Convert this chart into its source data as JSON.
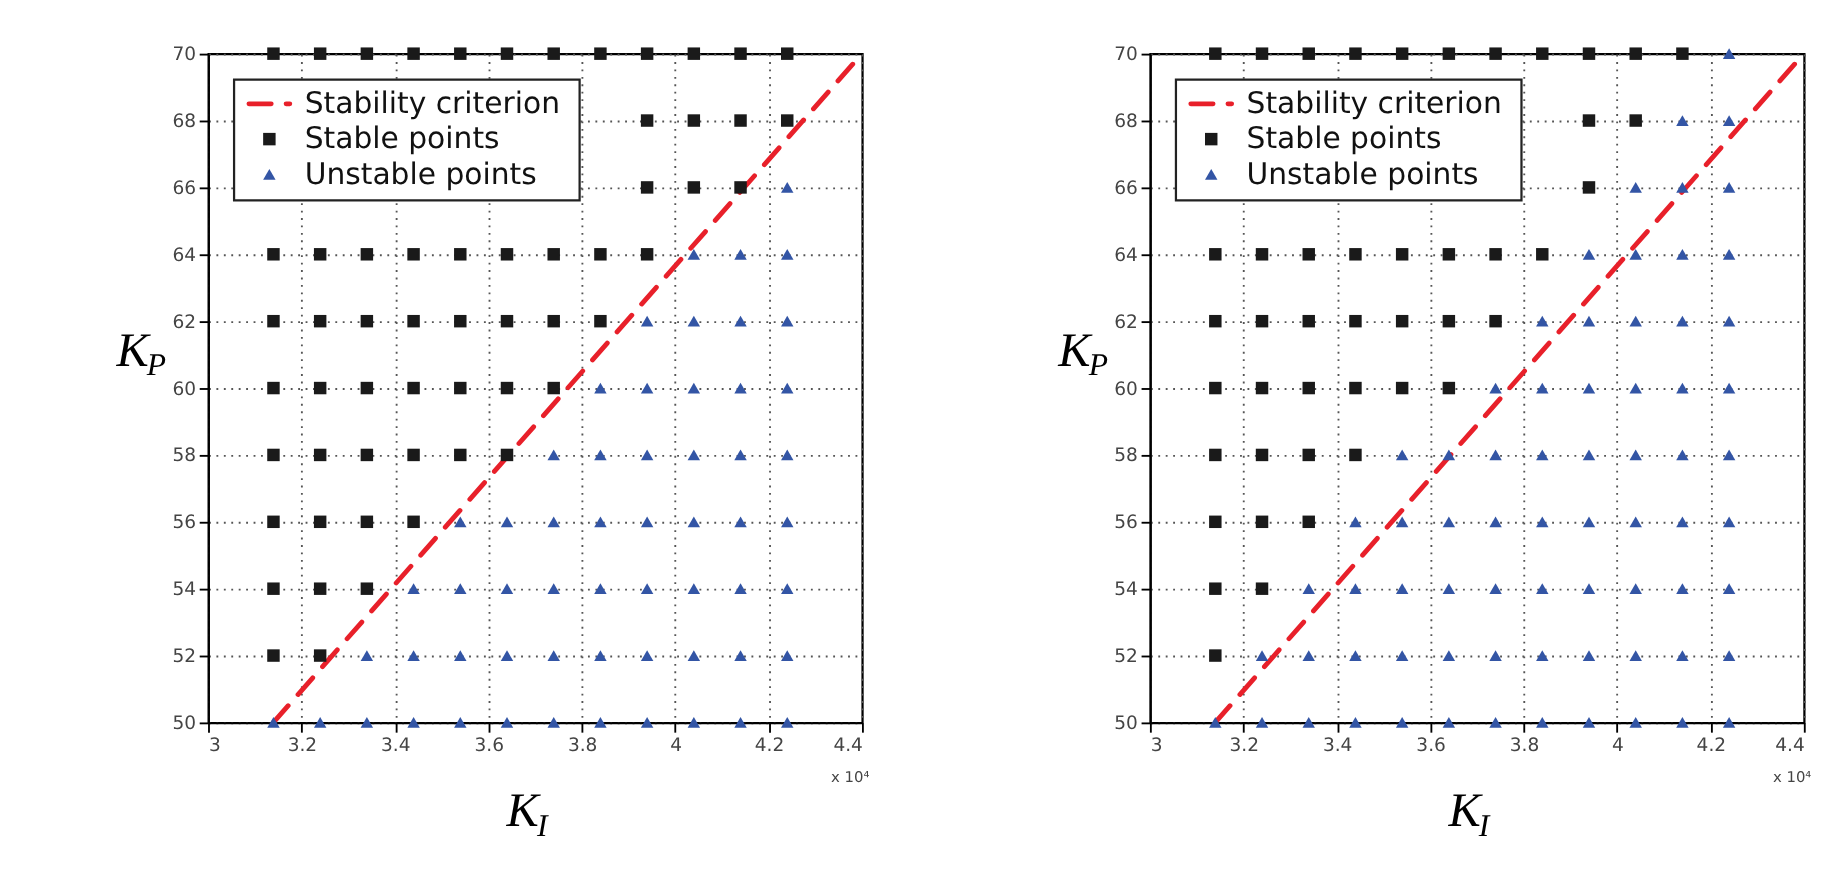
{
  "chart_data": [
    {
      "type": "scatter",
      "xlabel": "K$_{I}$",
      "ylabel": "K$_{P}$",
      "xlim": [
        3,
        4.4
      ],
      "ylim": [
        50,
        70
      ],
      "xticks": [
        3,
        3.2,
        3.4,
        3.6,
        3.8,
        4,
        4.2,
        4.4
      ],
      "yticks": [
        50,
        52,
        54,
        56,
        58,
        60,
        62,
        64,
        66,
        68,
        70
      ],
      "grid": true,
      "legend": "top left",
      "annotations": [
        "x 10⁴"
      ],
      "series": [
        {
          "name": "Stability criterion",
          "type": "line",
          "color": "#e8202a",
          "line_style": "dashed",
          "marker": "none",
          "x": [
            3.14,
            4.4
          ],
          "values": [
            50,
            70
          ]
        },
        {
          "name": "Stable points",
          "color": "#1a1a1a",
          "marker": "square",
          "x": [
            3.14,
            3.24,
            3.34,
            3.44,
            3.54,
            3.64,
            3.74,
            3.84,
            3.94,
            4.04,
            4.14,
            4.24,
            3.94,
            4.04,
            4.14,
            4.24,
            3.94,
            4.04,
            4.14,
            3.14,
            3.24,
            3.34,
            3.44,
            3.54,
            3.64,
            3.74,
            3.84,
            3.94,
            3.14,
            3.24,
            3.34,
            3.44,
            3.54,
            3.64,
            3.74,
            3.84,
            3.14,
            3.24,
            3.34,
            3.44,
            3.54,
            3.64,
            3.74,
            3.14,
            3.24,
            3.34,
            3.44,
            3.54,
            3.64,
            3.14,
            3.24,
            3.34,
            3.44,
            3.14,
            3.24,
            3.34,
            3.14,
            3.24
          ],
          "values": [
            70,
            70,
            70,
            70,
            70,
            70,
            70,
            70,
            70,
            70,
            70,
            70,
            68,
            68,
            68,
            68,
            66,
            66,
            66,
            64,
            64,
            64,
            64,
            64,
            64,
            64,
            64,
            64,
            62,
            62,
            62,
            62,
            62,
            62,
            62,
            62,
            60,
            60,
            60,
            60,
            60,
            60,
            60,
            58,
            58,
            58,
            58,
            58,
            58,
            56,
            56,
            56,
            56,
            54,
            54,
            54,
            52,
            52
          ]
        },
        {
          "name": "Unstable points",
          "color": "#3355a5",
          "marker": "triangle",
          "x": [
            4.24,
            4.04,
            4.14,
            4.24,
            3.94,
            4.04,
            4.14,
            4.24,
            3.84,
            3.94,
            4.04,
            4.14,
            4.24,
            3.74,
            3.84,
            3.94,
            4.04,
            4.14,
            4.24,
            3.54,
            3.64,
            3.74,
            3.84,
            3.94,
            4.04,
            4.14,
            4.24,
            3.44,
            3.54,
            3.64,
            3.74,
            3.84,
            3.94,
            4.04,
            4.14,
            4.24,
            3.34,
            3.44,
            3.54,
            3.64,
            3.74,
            3.84,
            3.94,
            4.04,
            4.14,
            4.24,
            3.14,
            3.24,
            3.34,
            3.44,
            3.54,
            3.64,
            3.74,
            3.84,
            3.94,
            4.04,
            4.14,
            4.24
          ],
          "values": [
            66,
            64,
            64,
            64,
            62,
            62,
            62,
            62,
            60,
            60,
            60,
            60,
            60,
            58,
            58,
            58,
            58,
            58,
            58,
            56,
            56,
            56,
            56,
            56,
            56,
            56,
            56,
            54,
            54,
            54,
            54,
            54,
            54,
            54,
            54,
            54,
            52,
            52,
            52,
            52,
            52,
            52,
            52,
            52,
            52,
            52,
            50,
            50,
            50,
            50,
            50,
            50,
            50,
            50,
            50,
            50,
            50,
            50
          ]
        }
      ]
    },
    {
      "type": "scatter",
      "xlabel": "K$_{I}$",
      "ylabel": "K$_{P}$",
      "xlim": [
        3,
        4.4
      ],
      "ylim": [
        50,
        70
      ],
      "xticks": [
        3,
        3.2,
        3.4,
        3.6,
        3.8,
        4,
        4.2,
        4.4
      ],
      "yticks": [
        50,
        52,
        54,
        56,
        58,
        60,
        62,
        64,
        66,
        68,
        70
      ],
      "grid": true,
      "legend": "top left",
      "annotations": [
        "x 10⁴"
      ],
      "series": [
        {
          "name": "Stability criterion",
          "type": "line",
          "color": "#e8202a",
          "line_style": "dashed",
          "marker": "none",
          "x": [
            3.14,
            4.4
          ],
          "values": [
            50,
            70
          ]
        },
        {
          "name": "Stable points",
          "color": "#1a1a1a",
          "marker": "square",
          "x": [
            3.14,
            3.24,
            3.34,
            3.44,
            3.54,
            3.64,
            3.74,
            3.84,
            3.94,
            4.04,
            4.14,
            3.94,
            4.04,
            3.94,
            3.14,
            3.24,
            3.34,
            3.44,
            3.54,
            3.64,
            3.74,
            3.84,
            3.14,
            3.24,
            3.34,
            3.44,
            3.54,
            3.64,
            3.74,
            3.14,
            3.24,
            3.34,
            3.44,
            3.54,
            3.64,
            3.14,
            3.24,
            3.34,
            3.44,
            3.14,
            3.24,
            3.34,
            3.14,
            3.24,
            3.14
          ],
          "values": [
            70,
            70,
            70,
            70,
            70,
            70,
            70,
            70,
            70,
            70,
            70,
            68,
            68,
            66,
            64,
            64,
            64,
            64,
            64,
            64,
            64,
            64,
            62,
            62,
            62,
            62,
            62,
            62,
            62,
            60,
            60,
            60,
            60,
            60,
            60,
            58,
            58,
            58,
            58,
            56,
            56,
            56,
            54,
            54,
            52
          ]
        },
        {
          "name": "Unstable points",
          "color": "#3355a5",
          "marker": "triangle",
          "x": [
            4.24,
            4.14,
            4.24,
            4.04,
            4.14,
            4.24,
            3.94,
            4.04,
            4.14,
            4.24,
            3.84,
            3.94,
            4.04,
            4.14,
            4.24,
            3.74,
            3.84,
            3.94,
            4.04,
            4.14,
            4.24,
            3.54,
            3.64,
            3.74,
            3.84,
            3.94,
            4.04,
            4.14,
            4.24,
            3.44,
            3.54,
            3.64,
            3.74,
            3.84,
            3.94,
            4.04,
            4.14,
            4.24,
            3.34,
            3.44,
            3.54,
            3.64,
            3.74,
            3.84,
            3.94,
            4.04,
            4.14,
            4.24,
            3.24,
            3.34,
            3.44,
            3.54,
            3.64,
            3.74,
            3.84,
            3.94,
            4.04,
            4.14,
            4.24,
            3.14,
            3.24,
            3.34,
            3.44,
            3.54,
            3.64,
            3.74,
            3.84,
            3.94,
            4.04,
            4.14,
            4.24
          ],
          "values": [
            70,
            68,
            68,
            66,
            66,
            66,
            64,
            64,
            64,
            64,
            62,
            62,
            62,
            62,
            62,
            60,
            60,
            60,
            60,
            60,
            60,
            58,
            58,
            58,
            58,
            58,
            58,
            58,
            58,
            56,
            56,
            56,
            56,
            56,
            56,
            56,
            56,
            56,
            54,
            54,
            54,
            54,
            54,
            54,
            54,
            54,
            54,
            54,
            52,
            52,
            52,
            52,
            52,
            52,
            52,
            52,
            52,
            52,
            52,
            50,
            50,
            50,
            50,
            50,
            50,
            50,
            50,
            50,
            50,
            50,
            50
          ]
        }
      ]
    }
  ]
}
